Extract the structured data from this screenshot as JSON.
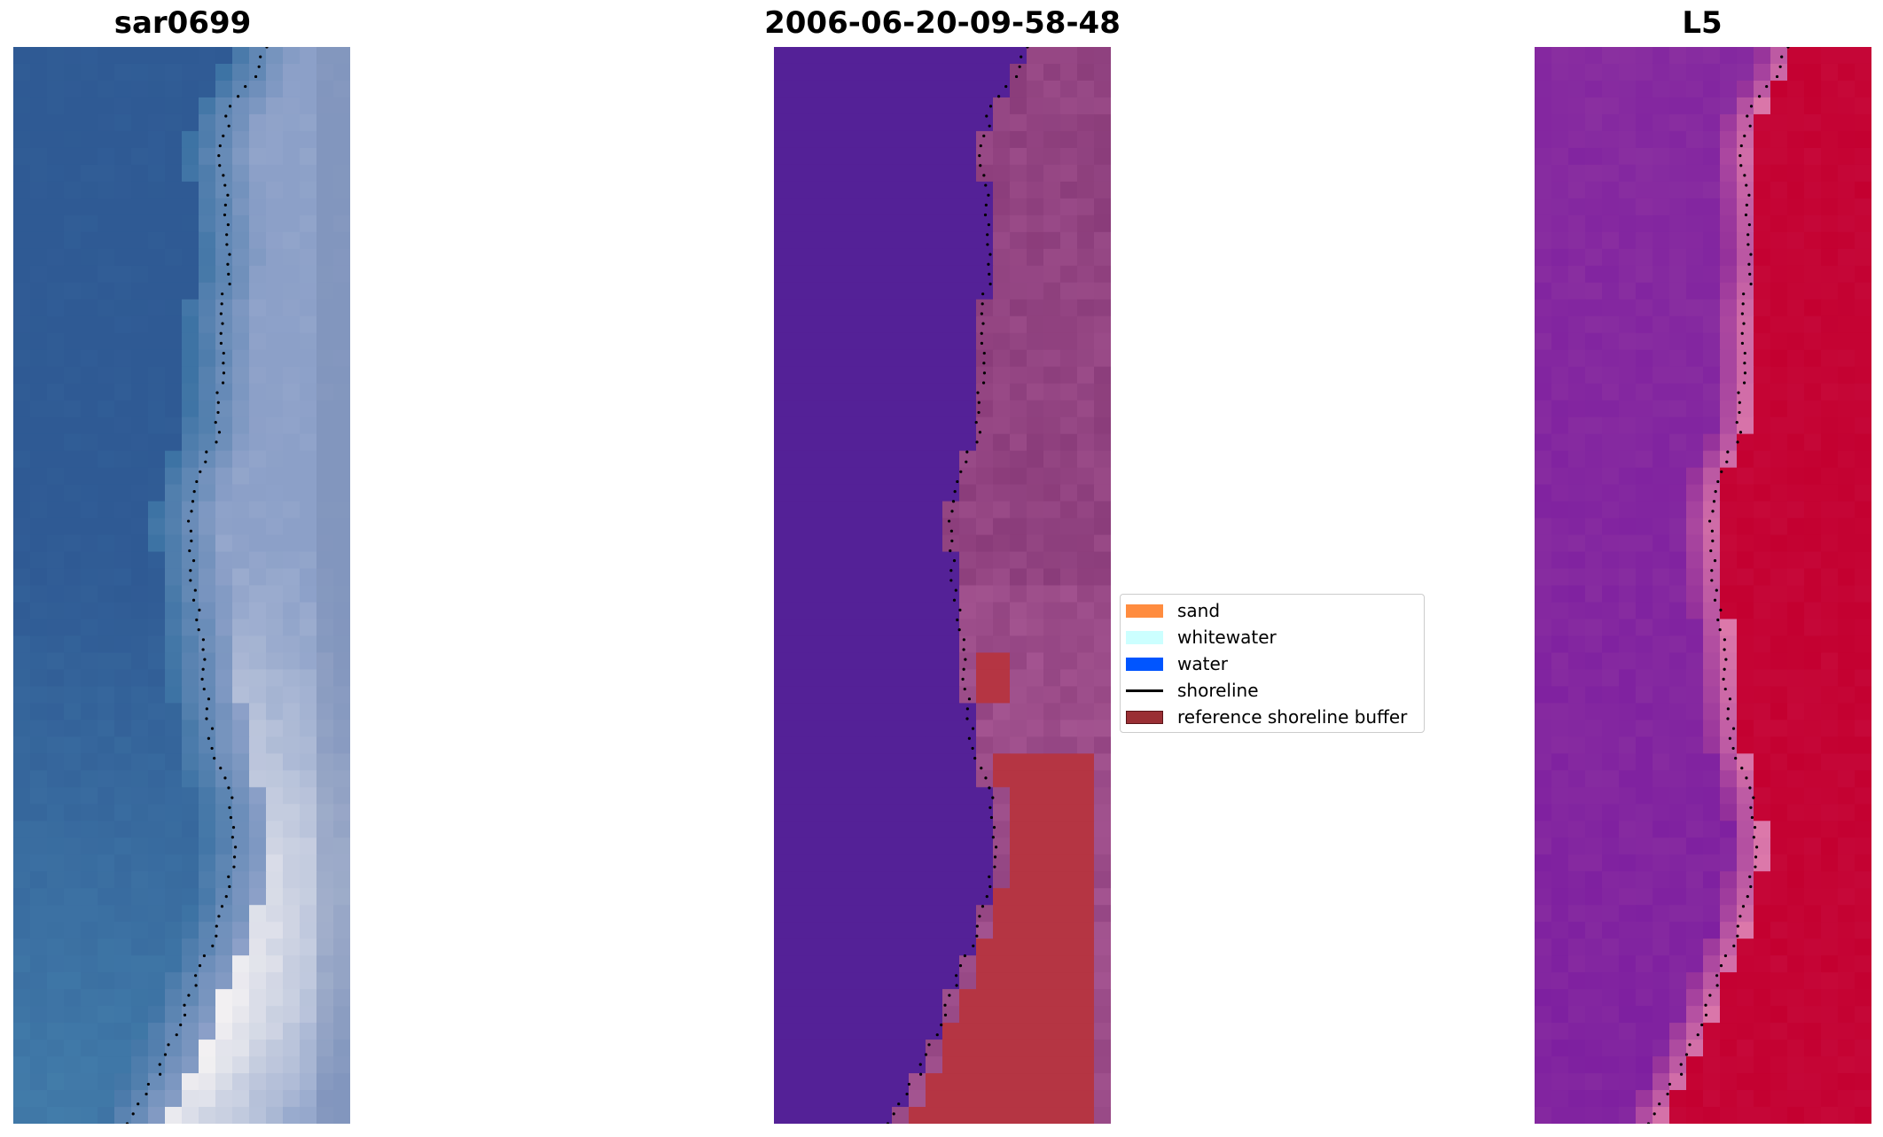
{
  "titles": {
    "left": "sar0699",
    "middle": "2006-06-20-09-58-48",
    "right": "L5"
  },
  "legend": {
    "entries": [
      {
        "label": "sand",
        "color": "#ff8c3f",
        "kind": "patch"
      },
      {
        "label": "whitewater",
        "color": "#ccffff",
        "kind": "patch"
      },
      {
        "label": "water",
        "color": "#0055ff",
        "kind": "patch"
      },
      {
        "label": "shoreline",
        "color": "#000000",
        "kind": "line"
      },
      {
        "label": "reference shoreline buffer",
        "color": "#9a2f34",
        "kind": "patch"
      }
    ]
  },
  "chart_data": {
    "type": "heatmap",
    "panels": [
      "sar0699",
      "2006-06-20-09-58-48",
      "L5"
    ],
    "colors": {
      "water_class": "#542197",
      "land_class": "#8a3c7a",
      "buffer_overlay": "#b53543",
      "index_low": "#7a1aa0",
      "index_high": "#c40030",
      "rgb_water": "#2f5a94",
      "rgb_beach": "#f2f0f2"
    },
    "shoreline_color": "#000000"
  }
}
